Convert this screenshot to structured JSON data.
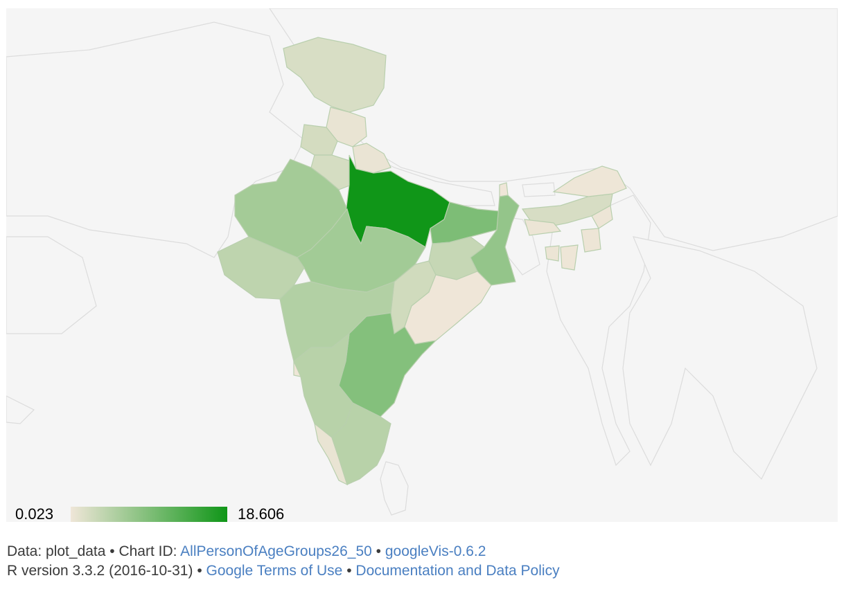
{
  "legend": {
    "min_label": "0.023",
    "max_label": "18.606",
    "min_value": 0.023,
    "max_value": 18.606,
    "color_low": "#efe6d8",
    "color_high": "#109618"
  },
  "map": {
    "background": "#f5f5f5",
    "border_color": "#dcdcdc",
    "region": "IN",
    "regions": [
      {
        "name": "Uttar Pradesh",
        "value": 18.606
      },
      {
        "name": "Bihar",
        "value": 9.5
      },
      {
        "name": "Andhra Pradesh",
        "value": 8.9
      },
      {
        "name": "Madhya Pradesh",
        "value": 6.4
      },
      {
        "name": "Rajasthan",
        "value": 6.3
      },
      {
        "name": "West Bengal",
        "value": 7.6
      },
      {
        "name": "Maharashtra",
        "value": 5.1
      },
      {
        "name": "Karnataka",
        "value": 4.6
      },
      {
        "name": "Tamil Nadu",
        "value": 4.6
      },
      {
        "name": "Gujarat",
        "value": 4.1
      },
      {
        "name": "Jharkhand",
        "value": 3.4
      },
      {
        "name": "Chhattisgarh",
        "value": 2.6
      },
      {
        "name": "Punjab",
        "value": 2.3
      },
      {
        "name": "Haryana",
        "value": 2.2
      },
      {
        "name": "Jammu and Kashmir",
        "value": 1.9
      },
      {
        "name": "Assam",
        "value": 2.0
      },
      {
        "name": "Odisha",
        "value": 0.023
      },
      {
        "name": "Kerala",
        "value": 0.5
      },
      {
        "name": "Himachal Pradesh",
        "value": 0.5
      },
      {
        "name": "Uttarakhand",
        "value": 0.4
      },
      {
        "name": "Arunachal Pradesh",
        "value": 0.1
      },
      {
        "name": "Nagaland",
        "value": 0.2
      },
      {
        "name": "Manipur",
        "value": 0.2
      },
      {
        "name": "Mizoram",
        "value": 0.1
      },
      {
        "name": "Tripura",
        "value": 0.3
      },
      {
        "name": "Meghalaya",
        "value": 0.3
      },
      {
        "name": "Sikkim",
        "value": 0.05
      },
      {
        "name": "Goa",
        "value": 0.1
      }
    ]
  },
  "footer": {
    "data_prefix": "Data: plot_data • Chart ID: ",
    "chart_id": "AllPersonOfAgeGroups26_50",
    "sep1": " • ",
    "package": "googleVis-0.6.2",
    "r_version": "R version 3.3.2 (2016-10-31) • ",
    "terms": "Google Terms of Use",
    "sep2": " • ",
    "docs": "Documentation and Data Policy"
  }
}
